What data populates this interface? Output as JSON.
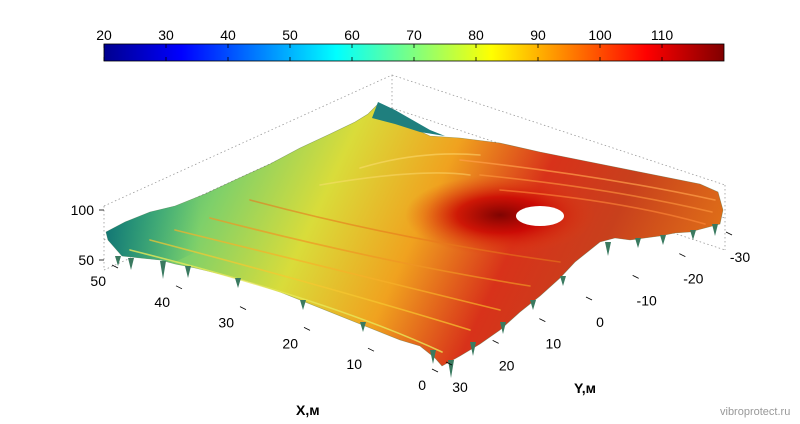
{
  "chart_data": {
    "type": "surface",
    "title": "",
    "colorbar": {
      "ticks": [
        20,
        30,
        40,
        50,
        60,
        70,
        80,
        90,
        100,
        110
      ],
      "range": [
        20,
        120
      ],
      "colormap": "jet"
    },
    "x_axis": {
      "label": "X,м",
      "ticks": [
        0,
        10,
        20,
        30,
        40,
        50
      ],
      "range": [
        0,
        50
      ]
    },
    "y_axis": {
      "label": "Y,м",
      "ticks": [
        30,
        20,
        10,
        0,
        -10,
        -20,
        -30
      ],
      "range": [
        -30,
        30
      ]
    },
    "z_axis": {
      "label": "",
      "ticks": [
        50,
        100
      ],
      "range": [
        40,
        110
      ]
    },
    "grid": true,
    "peak": {
      "value_approx": 118
    }
  },
  "watermark": "vibroprotect.ru",
  "colors": {
    "jet": [
      "#00008f",
      "#0000ff",
      "#00ffff",
      "#ffff00",
      "#ff0000",
      "#800000"
    ]
  }
}
